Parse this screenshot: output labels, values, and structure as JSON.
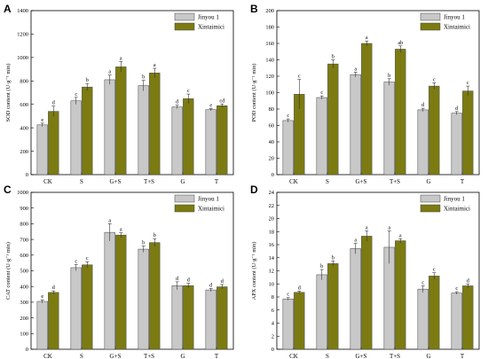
{
  "colors": {
    "series1": "#c8c8c8",
    "series2": "#7b7b12",
    "axis": "#000000"
  },
  "chart_data": [
    {
      "type": "bar",
      "panel": "A",
      "ylabel": "SOD content (U·g⁻¹ min)",
      "ylim": [
        0,
        1400
      ],
      "ytick_labels": [
        "0",
        "200",
        "400",
        "600",
        "800",
        "1000",
        "1200",
        "1400"
      ],
      "categories": [
        "CK",
        "S",
        "G+S",
        "T+S",
        "G",
        "T"
      ],
      "series": [
        {
          "name": "Jinyou 1",
          "values": [
            425,
            630,
            810,
            760,
            578,
            555
          ],
          "errors": [
            15,
            30,
            40,
            45,
            15,
            10
          ],
          "labels": [
            "e",
            "c",
            "a",
            "b",
            "d",
            "e"
          ]
        },
        {
          "name": "Xintaimici",
          "values": [
            540,
            748,
            920,
            868,
            648,
            588
          ],
          "errors": [
            45,
            30,
            45,
            40,
            40,
            15
          ],
          "labels": [
            "d",
            "b",
            "a",
            "a",
            "c",
            "cd"
          ]
        }
      ],
      "legend": "top-right"
    },
    {
      "type": "bar",
      "panel": "B",
      "ylabel": "POD content (U·g⁻¹ min)",
      "ylim": [
        0,
        200
      ],
      "ytick_labels": [
        "0",
        "20",
        "40",
        "60",
        "80",
        "100",
        "120",
        "140",
        "160",
        "180",
        "200"
      ],
      "categories": [
        "CK",
        "S",
        "G+S",
        "T+S",
        "G",
        "T"
      ],
      "series": [
        {
          "name": "Jinyou 1",
          "values": [
            66,
            94,
            122,
            113,
            79,
            75
          ],
          "errors": [
            2,
            2,
            3,
            4,
            2,
            2
          ],
          "labels": [
            "c",
            "c",
            "a",
            "b",
            "d",
            "d"
          ]
        },
        {
          "name": "Xintaimici",
          "values": [
            98,
            135,
            160,
            153,
            108,
            102
          ],
          "errors": [
            18,
            5,
            3,
            4,
            4,
            6
          ],
          "labels": [
            "c",
            "b",
            "a",
            "ab",
            "c",
            "c"
          ]
        }
      ],
      "legend": "top-right"
    },
    {
      "type": "bar",
      "panel": "C",
      "ylabel": "CAT content (U·g⁻¹ min)",
      "ylim": [
        0,
        1000
      ],
      "ytick_labels": [
        "0",
        "100",
        "200",
        "300",
        "400",
        "500",
        "600",
        "700",
        "800",
        "900",
        "1000"
      ],
      "categories": [
        "CK",
        "S",
        "G+S",
        "T+S",
        "G",
        "T"
      ],
      "series": [
        {
          "name": "Jinyou 1",
          "values": [
            305,
            520,
            745,
            638,
            405,
            378
          ],
          "errors": [
            10,
            20,
            55,
            20,
            25,
            10
          ],
          "labels": [
            "e",
            "c",
            "a",
            "b",
            "d",
            "d"
          ]
        },
        {
          "name": "Xintaimici",
          "values": [
            362,
            538,
            728,
            680,
            405,
            398
          ],
          "errors": [
            10,
            20,
            15,
            25,
            15,
            15
          ],
          "labels": [
            "d",
            "c",
            "a",
            "b",
            "d",
            "d"
          ]
        }
      ],
      "legend": "top-right"
    },
    {
      "type": "bar",
      "panel": "D",
      "ylabel": "APX content (U·g⁻¹ min)",
      "ylim": [
        0,
        24
      ],
      "ytick_labels": [
        "0",
        "2",
        "4",
        "6",
        "8",
        "10",
        "12",
        "14",
        "16",
        "18",
        "20",
        "22",
        "24"
      ],
      "categories": [
        "CK",
        "S",
        "G+S",
        "T+S",
        "G",
        "T"
      ],
      "series": [
        {
          "name": "Jinyou 1",
          "values": [
            7.7,
            11.4,
            15.4,
            15.6,
            9.2,
            8.6
          ],
          "errors": [
            0.2,
            0.8,
            0.8,
            2.5,
            0.5,
            0.2
          ],
          "labels": [
            "c",
            "b",
            "a",
            "a",
            "c",
            "c"
          ]
        },
        {
          "name": "Xintaimici",
          "values": [
            8.7,
            13.1,
            17.3,
            16.6,
            11.2,
            9.7
          ],
          "errors": [
            0.2,
            0.4,
            0.8,
            0.3,
            0.5,
            0.3
          ],
          "labels": [
            "d",
            "b",
            "a",
            "a",
            "c",
            "d"
          ]
        }
      ],
      "legend": "top-right"
    }
  ]
}
